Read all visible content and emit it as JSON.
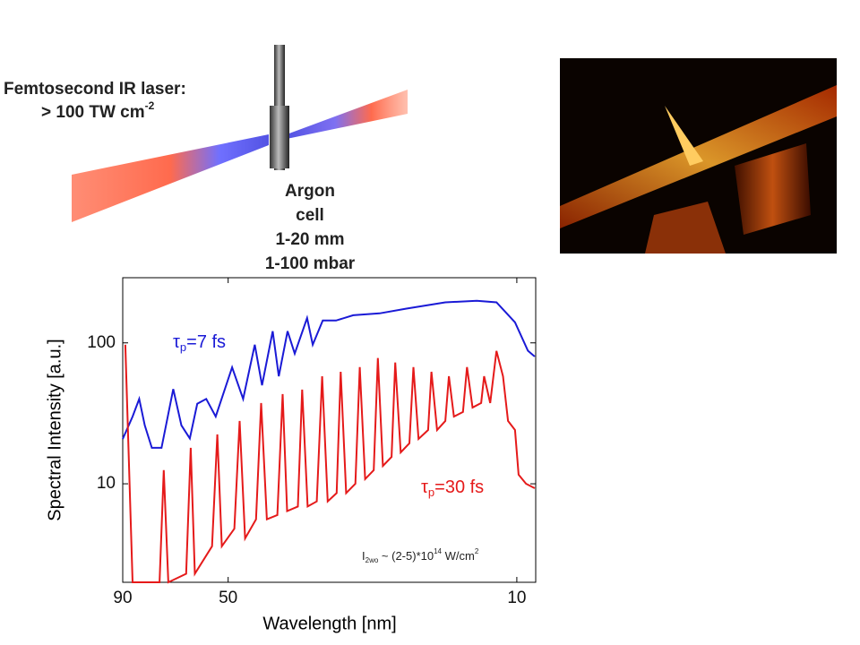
{
  "diagram": {
    "laser_label": [
      "Femtosecond IR laser:",
      "> 100 TW cm"
    ],
    "laser_label_sup": "-2",
    "cell_label": [
      "Argon",
      "cell",
      "1-20 mm",
      "1-100 mbar"
    ]
  },
  "chart_data": {
    "type": "line",
    "xlabel": "Wavelength [nm]",
    "ylabel": "Spectral Intensity [a.u.]",
    "xscale": "log",
    "yscale": "log",
    "xlim": [
      90,
      9
    ],
    "ylim": [
      2,
      290
    ],
    "xticks": [
      90,
      50,
      10
    ],
    "yticks": [
      10,
      100
    ],
    "annotations": [
      {
        "parts": [
          "τ",
          "p",
          "=7 fs"
        ],
        "color": "#1a1ad6"
      },
      {
        "parts": [
          "τ",
          "p",
          "=30 fs"
        ],
        "color": "#e51a1a"
      },
      {
        "parts": [
          "I",
          "2wo",
          " ~ (2-5)*10",
          "14",
          " W/cm",
          "2"
        ],
        "color": "#222222"
      }
    ],
    "series": [
      {
        "color": "#1a1ad6",
        "x": [
          90,
          85.2,
          82.1,
          79.6,
          76.5,
          72.5,
          67.9,
          64.9,
          61.9,
          59.4,
          56.5,
          53.6,
          48.9,
          46.0,
          43.1,
          41.4,
          39.0,
          37.7,
          35.9,
          34.5,
          32.2,
          31.2,
          29.5,
          27.4,
          24.9,
          21.5,
          18.5,
          14.9,
          12.5,
          11.2,
          10.1,
          9.4,
          9.05
        ],
        "values": [
          20.8,
          30,
          40,
          26,
          18,
          18,
          47,
          26,
          21,
          37,
          40,
          30,
          67,
          40,
          97,
          50,
          121,
          58,
          121,
          84,
          150,
          97,
          144,
          144,
          157,
          162,
          175,
          194,
          199,
          194,
          140,
          88,
          80
        ]
      },
      {
        "color": "#e51a1a",
        "x": [
          88.7,
          85.2,
          73.3,
          71.6,
          69.8,
          63.2,
          61.6,
          60.2,
          54.7,
          53.1,
          51.8,
          48.3,
          46.9,
          45.5,
          42.8,
          41.6,
          40.3,
          38.0,
          36.9,
          36.0,
          33.9,
          33.1,
          32.1,
          30.5,
          29.6,
          28.7,
          27.3,
          26.7,
          25.9,
          24.6,
          24.0,
          23.3,
          22.2,
          21.7,
          21.1,
          20.1,
          19.7,
          19.1,
          18.2,
          17.8,
          17.3,
          16.4,
          16.1,
          15.6,
          14.9,
          14.6,
          14.2,
          13.5,
          13.2,
          12.8,
          12.2,
          12.0,
          11.6,
          11.2,
          10.8,
          10.5,
          10.1,
          9.9,
          9.5,
          9.05
        ],
        "values": [
          97,
          2,
          2,
          12.5,
          2,
          2.3,
          18,
          2.3,
          3.6,
          22.4,
          3.6,
          4.8,
          27.9,
          4.1,
          5.6,
          37.4,
          5.6,
          6.0,
          43.3,
          6.4,
          6.9,
          46.6,
          6.9,
          7.5,
          58,
          7.5,
          8.6,
          62.4,
          8.6,
          10,
          67.3,
          10.8,
          12.5,
          78,
          13.4,
          15.5,
          72.5,
          16.7,
          19.4,
          67.3,
          20.8,
          24.1,
          62.4,
          24.1,
          27.9,
          58,
          30,
          32.3,
          67.3,
          34.8,
          37.4,
          58,
          37.4,
          87.6,
          58,
          27.9,
          24.1,
          11.6,
          10,
          9.3
        ]
      }
    ]
  }
}
